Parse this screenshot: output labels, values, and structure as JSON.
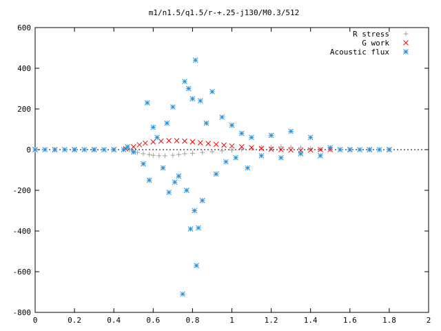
{
  "chart_data": {
    "type": "scatter",
    "title": "m1/n1.5/q1.5/r-+.25-j130/M0.3/512",
    "xlabel": "",
    "ylabel": "",
    "xlim": [
      0,
      2
    ],
    "ylim": [
      -800,
      600
    ],
    "x_ticks": [
      0,
      0.2,
      0.4,
      0.6,
      0.8,
      1,
      1.2,
      1.4,
      1.6,
      1.8,
      2
    ],
    "x_tick_labels": [
      "0",
      "0.2",
      "0.4",
      "0.6",
      "0.8",
      "1",
      "1.2",
      "1.4",
      "1.6",
      "1.8",
      "2"
    ],
    "y_ticks": [
      -800,
      -600,
      -400,
      -200,
      0,
      200,
      400,
      600
    ],
    "y_tick_labels": [
      "-800",
      "-600",
      "-400",
      "-200",
      "0",
      "200",
      "400",
      "600"
    ],
    "grid": false,
    "legend_position": "top-right",
    "series": [
      {
        "name": "R stress",
        "marker": "plus",
        "color": "#a0a0a0",
        "points": [
          [
            0.0,
            0
          ],
          [
            0.1,
            0
          ],
          [
            0.2,
            0
          ],
          [
            0.3,
            0
          ],
          [
            0.4,
            0
          ],
          [
            0.45,
            0
          ],
          [
            0.47,
            4
          ],
          [
            0.48,
            -2
          ],
          [
            0.5,
            -8
          ],
          [
            0.52,
            -14
          ],
          [
            0.55,
            -20
          ],
          [
            0.58,
            -24
          ],
          [
            0.6,
            -28
          ],
          [
            0.63,
            -30
          ],
          [
            0.66,
            -30
          ],
          [
            0.7,
            -28
          ],
          [
            0.73,
            -24
          ],
          [
            0.76,
            -20
          ],
          [
            0.8,
            -18
          ],
          [
            0.85,
            -14
          ],
          [
            0.9,
            -10
          ],
          [
            0.95,
            -6
          ],
          [
            1.0,
            -2
          ],
          [
            1.05,
            2
          ],
          [
            1.1,
            6
          ],
          [
            1.15,
            10
          ],
          [
            1.2,
            12
          ],
          [
            1.25,
            14
          ],
          [
            1.3,
            12
          ],
          [
            1.35,
            10
          ],
          [
            1.4,
            6
          ],
          [
            1.45,
            2
          ],
          [
            1.5,
            0
          ],
          [
            1.55,
            0
          ],
          [
            1.6,
            0
          ],
          [
            1.7,
            0
          ],
          [
            1.8,
            0
          ]
        ]
      },
      {
        "name": "G work",
        "marker": "cross",
        "color": "#ff0000",
        "points": [
          [
            0.0,
            0
          ],
          [
            0.1,
            0
          ],
          [
            0.2,
            0
          ],
          [
            0.3,
            0
          ],
          [
            0.4,
            0
          ],
          [
            0.46,
            4
          ],
          [
            0.5,
            14
          ],
          [
            0.53,
            24
          ],
          [
            0.56,
            32
          ],
          [
            0.6,
            38
          ],
          [
            0.64,
            42
          ],
          [
            0.68,
            44
          ],
          [
            0.72,
            44
          ],
          [
            0.76,
            42
          ],
          [
            0.8,
            38
          ],
          [
            0.84,
            34
          ],
          [
            0.88,
            30
          ],
          [
            0.92,
            26
          ],
          [
            0.96,
            22
          ],
          [
            1.0,
            18
          ],
          [
            1.05,
            14
          ],
          [
            1.1,
            10
          ],
          [
            1.15,
            6
          ],
          [
            1.2,
            2
          ],
          [
            1.25,
            0
          ],
          [
            1.3,
            -2
          ],
          [
            1.35,
            -4
          ],
          [
            1.4,
            -2
          ],
          [
            1.45,
            0
          ],
          [
            1.5,
            0
          ],
          [
            1.6,
            0
          ],
          [
            1.7,
            0
          ],
          [
            1.8,
            0
          ]
        ]
      },
      {
        "name": "Acoustic flux",
        "marker": "star",
        "color": "#1e90e0",
        "points": [
          [
            0.0,
            0
          ],
          [
            0.05,
            0
          ],
          [
            0.1,
            0
          ],
          [
            0.15,
            0
          ],
          [
            0.2,
            0
          ],
          [
            0.25,
            0
          ],
          [
            0.3,
            0
          ],
          [
            0.35,
            0
          ],
          [
            0.4,
            0
          ],
          [
            0.45,
            0
          ],
          [
            0.47,
            14
          ],
          [
            0.5,
            -12
          ],
          [
            0.55,
            -70
          ],
          [
            0.57,
            230
          ],
          [
            0.58,
            -150
          ],
          [
            0.6,
            110
          ],
          [
            0.62,
            60
          ],
          [
            0.65,
            -90
          ],
          [
            0.67,
            130
          ],
          [
            0.68,
            -210
          ],
          [
            0.7,
            210
          ],
          [
            0.71,
            -160
          ],
          [
            0.73,
            -130
          ],
          [
            0.75,
            -710
          ],
          [
            0.76,
            335
          ],
          [
            0.77,
            -200
          ],
          [
            0.78,
            300
          ],
          [
            0.79,
            -390
          ],
          [
            0.8,
            250
          ],
          [
            0.81,
            -300
          ],
          [
            0.815,
            440
          ],
          [
            0.82,
            -570
          ],
          [
            0.83,
            -385
          ],
          [
            0.84,
            240
          ],
          [
            0.85,
            -250
          ],
          [
            0.87,
            130
          ],
          [
            0.9,
            285
          ],
          [
            0.92,
            -120
          ],
          [
            0.95,
            160
          ],
          [
            0.97,
            -60
          ],
          [
            1.0,
            120
          ],
          [
            1.02,
            -40
          ],
          [
            1.05,
            80
          ],
          [
            1.08,
            -90
          ],
          [
            1.1,
            60
          ],
          [
            1.15,
            -30
          ],
          [
            1.2,
            70
          ],
          [
            1.25,
            -40
          ],
          [
            1.3,
            90
          ],
          [
            1.35,
            -20
          ],
          [
            1.4,
            60
          ],
          [
            1.45,
            -30
          ],
          [
            1.5,
            10
          ],
          [
            1.55,
            0
          ],
          [
            1.6,
            0
          ],
          [
            1.65,
            0
          ],
          [
            1.7,
            0
          ],
          [
            1.75,
            0
          ],
          [
            1.8,
            0
          ]
        ]
      }
    ]
  }
}
